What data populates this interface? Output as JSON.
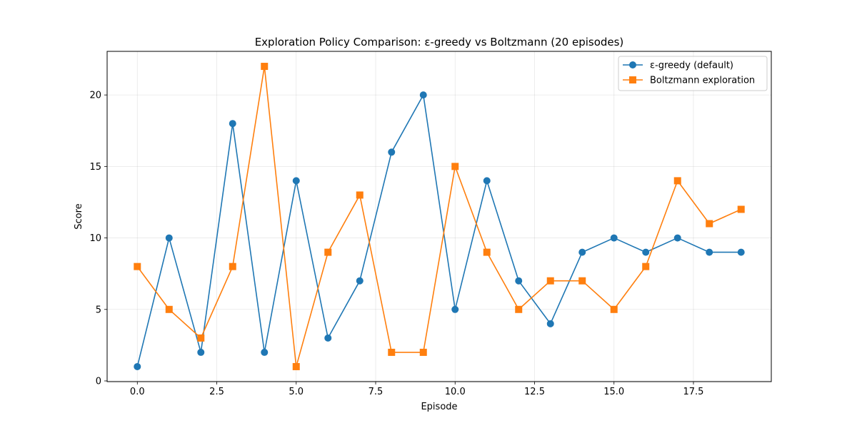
{
  "chart_data": {
    "type": "line",
    "title": "Exploration Policy Comparison: ε-greedy vs Boltzmann (20 episodes)",
    "xlabel": "Episode",
    "ylabel": "Score",
    "xlim": [
      -0.95,
      19.95
    ],
    "ylim": [
      -0.05,
      23.05
    ],
    "x_ticks": [
      0.0,
      2.5,
      5.0,
      7.5,
      10.0,
      12.5,
      15.0,
      17.5
    ],
    "x_tick_labels": [
      "0.0",
      "2.5",
      "5.0",
      "7.5",
      "10.0",
      "12.5",
      "15.0",
      "17.5"
    ],
    "y_ticks": [
      0,
      5,
      10,
      15,
      20
    ],
    "y_tick_labels": [
      "0",
      "5",
      "10",
      "15",
      "20"
    ],
    "grid": true,
    "legend_position": "top-right",
    "x": [
      0,
      1,
      2,
      3,
      4,
      5,
      6,
      7,
      8,
      9,
      10,
      11,
      12,
      13,
      14,
      15,
      16,
      17,
      18,
      19
    ],
    "series": [
      {
        "name": "ε-greedy (default)",
        "color": "#1f77b4",
        "marker": "circle",
        "values": [
          1,
          10,
          2,
          18,
          2,
          14,
          3,
          7,
          16,
          20,
          5,
          14,
          7,
          4,
          9,
          10,
          9,
          10,
          9,
          9
        ]
      },
      {
        "name": "Boltzmann exploration",
        "color": "#ff7f0e",
        "marker": "square",
        "values": [
          8,
          5,
          3,
          8,
          22,
          1,
          9,
          13,
          2,
          2,
          15,
          9,
          5,
          7,
          7,
          5,
          8,
          14,
          11,
          12
        ]
      }
    ]
  }
}
